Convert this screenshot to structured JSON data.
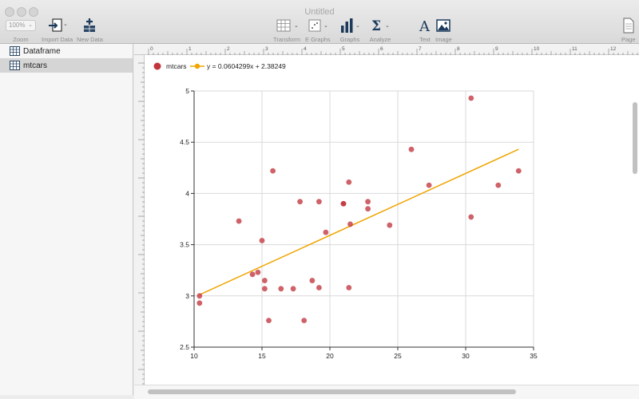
{
  "window": {
    "title": "Untitled"
  },
  "toolbar": {
    "zoom": {
      "value": "100%",
      "label": "Zoom"
    },
    "import_data": "Import Data",
    "new_data": "New Data",
    "transform": "Transform",
    "e_graphs": "E Graphs",
    "graphs": "Graphs",
    "analyze": "Analyze",
    "text": "Text",
    "image": "Image",
    "page": "Page"
  },
  "sidebar": {
    "items": [
      {
        "label": "Dataframe",
        "selected": false
      },
      {
        "label": "mtcars",
        "selected": true
      }
    ]
  },
  "ruler": {
    "labels": [
      "0",
      "1",
      "2",
      "3",
      "4",
      "5",
      "6",
      "7",
      "8",
      "9",
      "10",
      "11",
      "12"
    ]
  },
  "colors": {
    "points": "#c2353d",
    "fit_line": "#f0a500",
    "grid": "#d9d9d9"
  },
  "chart_data": {
    "type": "scatter",
    "title": "",
    "xlabel": "",
    "ylabel": "",
    "xlim": [
      10,
      35
    ],
    "ylim": [
      2.5,
      5
    ],
    "xticks": [
      "10",
      "15",
      "20",
      "25",
      "30",
      "35"
    ],
    "yticks": [
      "2.5",
      "3",
      "3.5",
      "4",
      "4.5",
      "5"
    ],
    "grid": true,
    "legend_position": "top-left",
    "series": [
      {
        "name": "mtcars",
        "type": "scatter",
        "x": [
          21,
          21,
          22.8,
          21.4,
          18.7,
          18.1,
          14.3,
          24.4,
          22.8,
          19.2,
          17.8,
          16.4,
          17.3,
          15.2,
          10.4,
          10.4,
          14.7,
          32.4,
          30.4,
          33.9,
          21.5,
          15.5,
          15.2,
          13.3,
          19.2,
          27.3,
          26,
          30.4,
          15.8,
          19.7,
          15,
          21.4
        ],
        "y": [
          3.9,
          3.9,
          3.85,
          3.08,
          3.15,
          2.76,
          3.21,
          3.69,
          3.92,
          3.92,
          3.92,
          3.07,
          3.07,
          3.07,
          2.93,
          3,
          3.23,
          4.08,
          4.93,
          4.22,
          3.7,
          2.76,
          3.15,
          3.73,
          3.08,
          4.08,
          4.43,
          3.77,
          4.22,
          3.62,
          3.54,
          4.11
        ]
      },
      {
        "name": "y = 0.0604299x + 2.38249",
        "type": "line",
        "slope": 0.0604299,
        "intercept": 2.38249,
        "x_range": [
          10.4,
          33.9
        ]
      }
    ]
  }
}
